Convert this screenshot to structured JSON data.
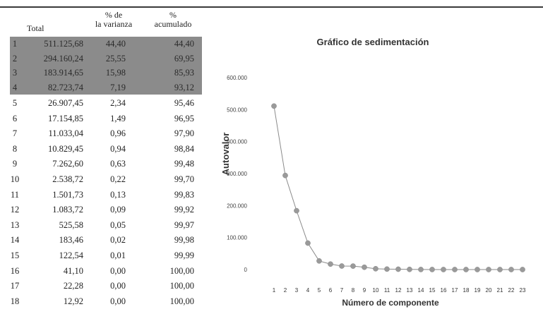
{
  "table": {
    "headers": {
      "total": "Total",
      "pct_varianza": "% de la varianza",
      "pct_acumulado": "% acumulado"
    },
    "rows": [
      {
        "idx": "1",
        "total": "511.125,68",
        "pct": "44,40",
        "acum": "44,40"
      },
      {
        "idx": "2",
        "total": "294.160,24",
        "pct": "25,55",
        "acum": "69,95"
      },
      {
        "idx": "3",
        "total": "183.914,65",
        "pct": "15,98",
        "acum": "85,93"
      },
      {
        "idx": "4",
        "total": "82.723,74",
        "pct": "7,19",
        "acum": "93,12"
      },
      {
        "idx": "5",
        "total": "26.907,45",
        "pct": "2,34",
        "acum": "95,46"
      },
      {
        "idx": "6",
        "total": "17.154,85",
        "pct": "1,49",
        "acum": "96,95"
      },
      {
        "idx": "7",
        "total": "11.033,04",
        "pct": "0,96",
        "acum": "97,90"
      },
      {
        "idx": "8",
        "total": "10.829,45",
        "pct": "0,94",
        "acum": "98,84"
      },
      {
        "idx": "9",
        "total": "7.262,60",
        "pct": "0,63",
        "acum": "99,48"
      },
      {
        "idx": "10",
        "total": "2.538,72",
        "pct": "0,22",
        "acum": "99,70"
      },
      {
        "idx": "11",
        "total": "1.501,73",
        "pct": "0,13",
        "acum": "99,83"
      },
      {
        "idx": "12",
        "total": "1.083,72",
        "pct": "0,09",
        "acum": "99,92"
      },
      {
        "idx": "13",
        "total": "525,58",
        "pct": "0,05",
        "acum": "99,97"
      },
      {
        "idx": "14",
        "total": "183,46",
        "pct": "0,02",
        "acum": "99,98"
      },
      {
        "idx": "15",
        "total": "122,54",
        "pct": "0,01",
        "acum": "99,99"
      },
      {
        "idx": "16",
        "total": "41,10",
        "pct": "0,00",
        "acum": "100,00"
      },
      {
        "idx": "17",
        "total": "22,28",
        "pct": "0,00",
        "acum": "100,00"
      },
      {
        "idx": "18",
        "total": "12,92",
        "pct": "0,00",
        "acum": "100,00"
      }
    ],
    "highlight_rows": 4,
    "highlight_color": "#8b8b8b"
  },
  "chart_data": {
    "type": "line",
    "title": "Gráfico de sedimentación",
    "xlabel": "Número de componente",
    "ylabel": "Autovalor",
    "y_tick_labels": [
      "0",
      "100.000",
      "200.000",
      "300.000",
      "400.000",
      "500.000",
      "600.000"
    ],
    "ylim": [
      0,
      600000
    ],
    "x": [
      1,
      2,
      3,
      4,
      5,
      6,
      7,
      8,
      9,
      10,
      11,
      12,
      13,
      14,
      15,
      16,
      17,
      18,
      19,
      20,
      21,
      22,
      23
    ],
    "values": [
      511125.68,
      294160.24,
      183914.65,
      82723.74,
      26907.45,
      17154.85,
      11033.04,
      10829.45,
      7262.6,
      2538.72,
      1501.73,
      1083.72,
      525.58,
      183.46,
      122.54,
      41.1,
      22.28,
      12.92,
      5,
      3,
      2,
      1,
      0
    ],
    "grid": false,
    "line_color": "#8a8a8a",
    "marker_color": "#9a9a9a"
  }
}
